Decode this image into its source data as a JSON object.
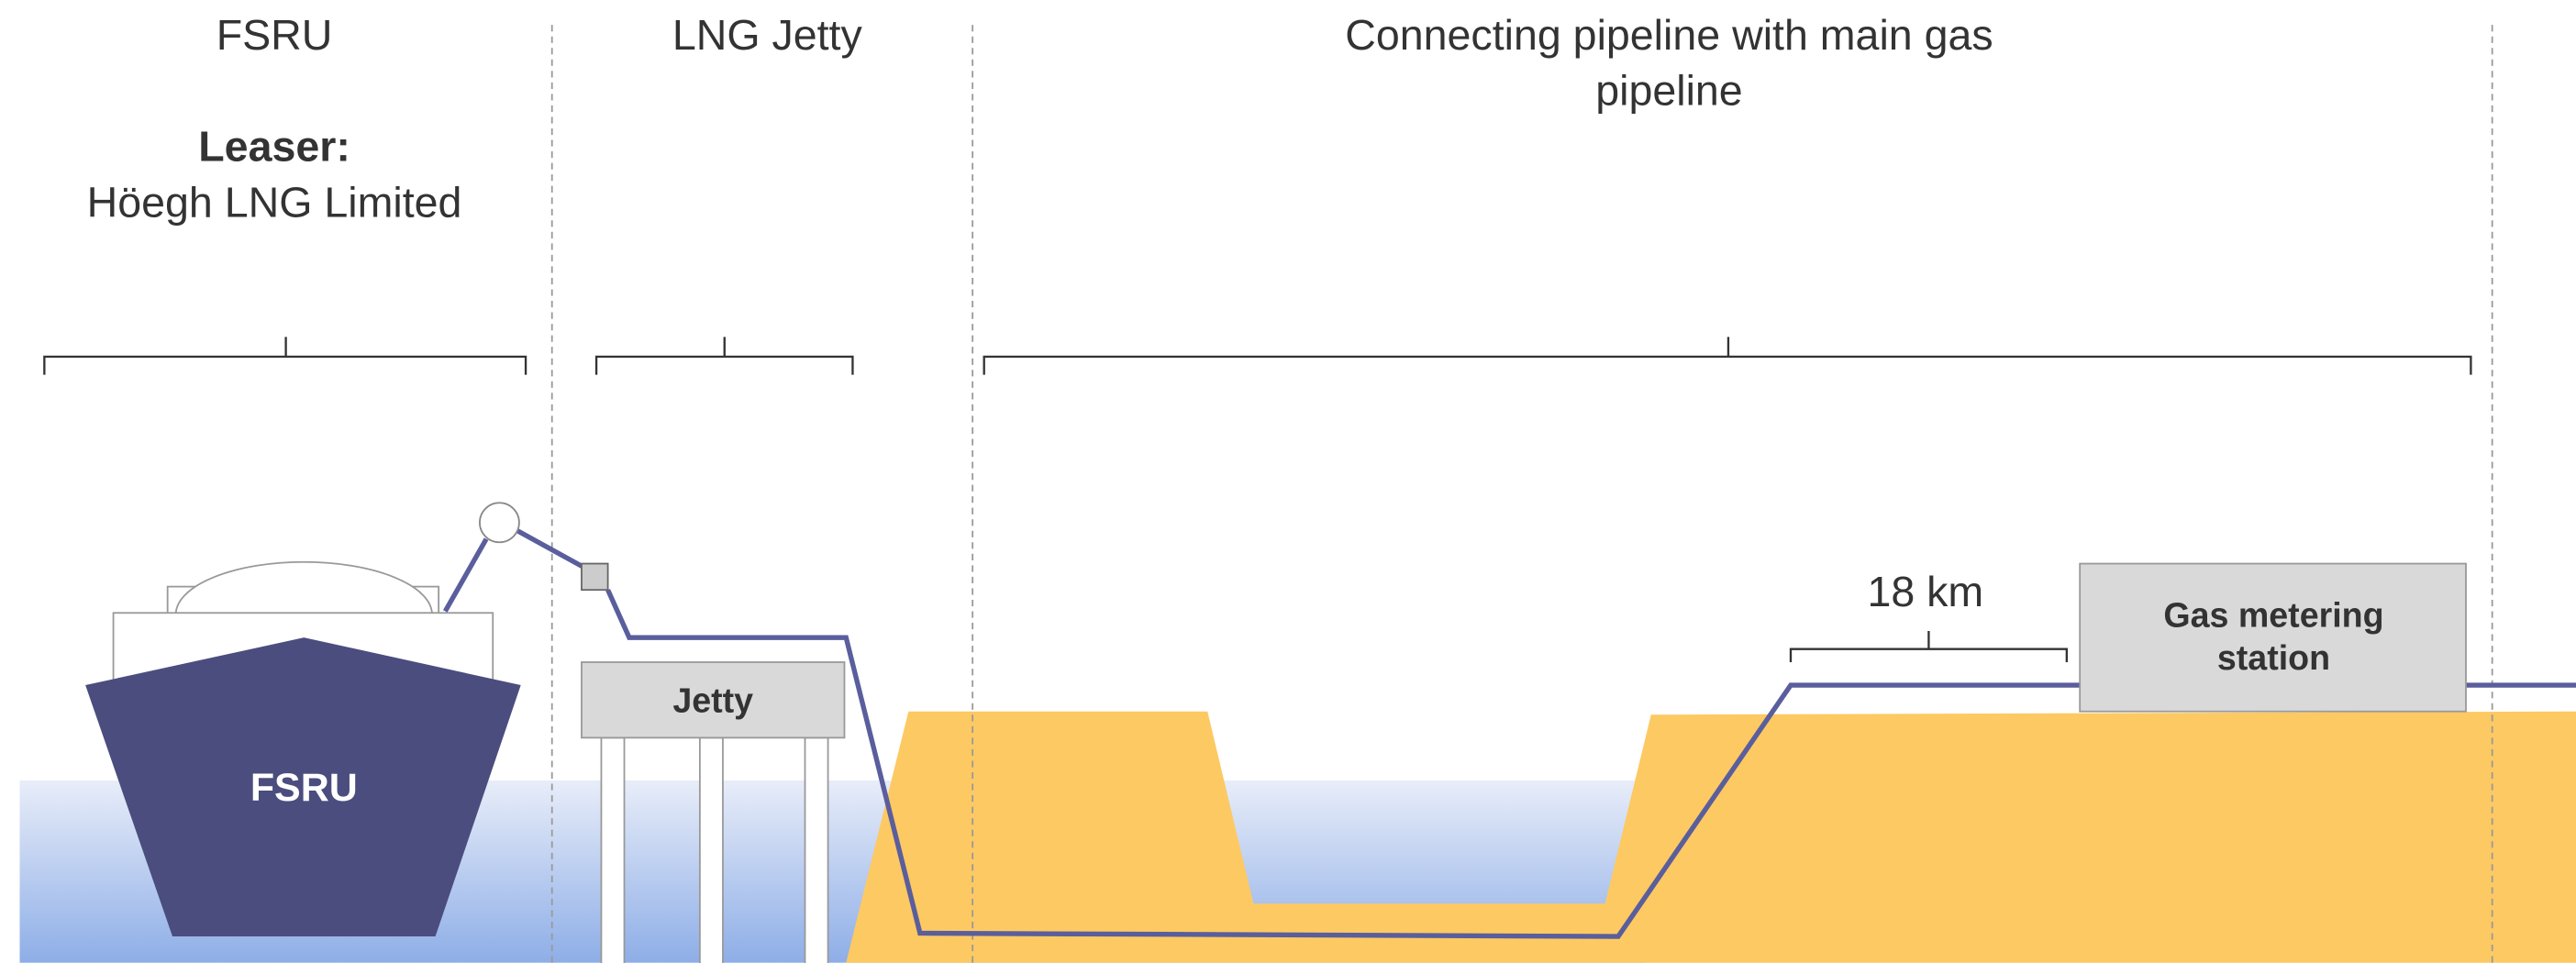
{
  "sections": [
    {
      "title": "FSRU",
      "leaser_label": "Leaser:",
      "leaser": "Höegh LNG Limited"
    },
    {
      "title": "LNG Jetty"
    },
    {
      "title_lines": [
        "Connecting pipeline with main gas",
        "pipeline"
      ]
    }
  ],
  "labels": {
    "fsru": "FSRU",
    "jetty": "Jetty",
    "distance": "18 km",
    "station_lines": [
      "Gas metering",
      "station"
    ]
  }
}
